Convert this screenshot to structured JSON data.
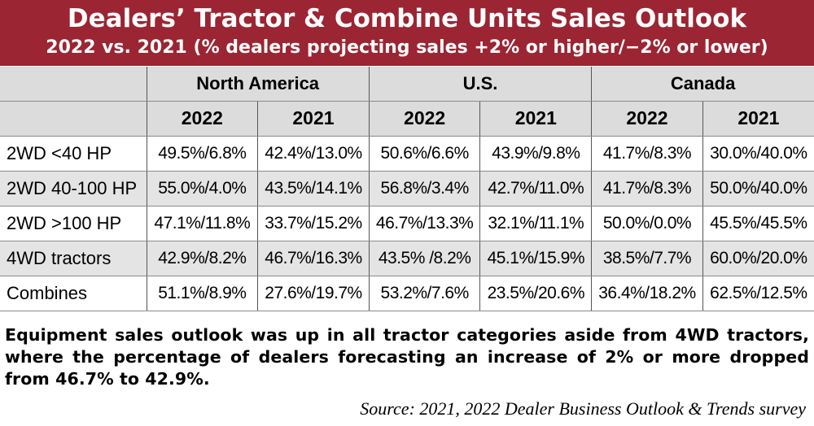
{
  "title": "Dealers’ Tractor & Combine Units Sales Outlook",
  "subtitle": "2022 vs. 2021 (% dealers projecting sales +2% or higher/−2% or lower)",
  "header_fill_color": "#9b2532",
  "chart_data": {
    "type": "table",
    "regions": [
      "North America",
      "U.S.",
      "Canada"
    ],
    "years": [
      "2022",
      "2021"
    ],
    "rows": [
      {
        "label": "2WD <40 HP",
        "cells": [
          "49.5%/6.8%",
          "42.4%/13.0%",
          "50.6%/6.6%",
          "43.9%/9.8%",
          "41.7%/8.3%",
          "30.0%/40.0%"
        ]
      },
      {
        "label": "2WD 40-100 HP",
        "cells": [
          "55.0%/4.0%",
          "43.5%/14.1%",
          "56.8%/3.4%",
          "42.7%/11.0%",
          "41.7%/8.3%",
          "50.0%/40.0%"
        ]
      },
      {
        "label": "2WD >100 HP",
        "cells": [
          "47.1%/11.8%",
          "33.7%/15.2%",
          "46.7%/13.3%",
          "32.1%/11.1%",
          "50.0%/0.0%",
          "45.5%/45.5%"
        ]
      },
      {
        "label": "4WD tractors",
        "cells": [
          "42.9%/8.2%",
          "46.7%/16.3%",
          "43.5% /8.2%",
          "45.1%/15.9%",
          "38.5%/7.7%",
          "60.0%/20.0%"
        ]
      },
      {
        "label": "Combines",
        "cells": [
          "51.1%/8.9%",
          "27.6%/19.7%",
          "53.2%/7.6%",
          "23.5%/20.6%",
          "36.4%/18.2%",
          "62.5%/12.5%"
        ]
      }
    ]
  },
  "caption": "Equipment sales outlook was up in all tractor categories aside from 4WD tractors, where the percentage of dealers forecasting an increase of 2% or more dropped from 46.7% to 42.9%.",
  "source": "Source: 2021, 2022 Dealer Business Outlook & Trends survey"
}
